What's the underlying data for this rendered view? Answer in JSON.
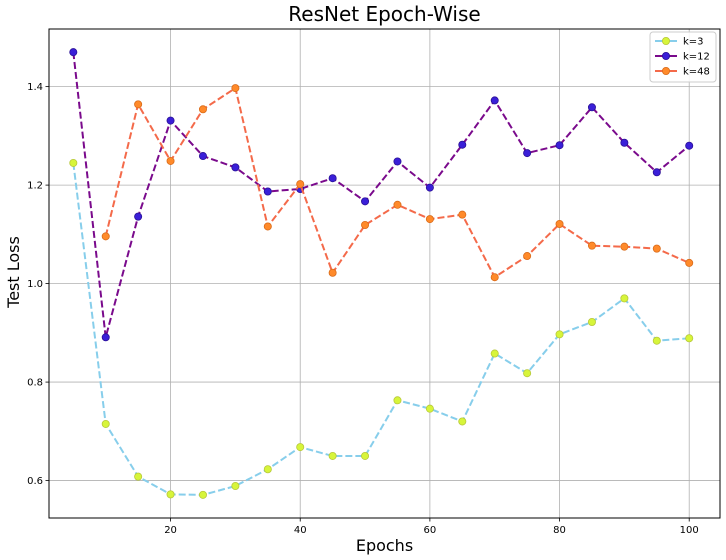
{
  "chart_data": {
    "type": "line",
    "title": "ResNet Epoch-Wise",
    "xlabel": "Epochs",
    "ylabel": "Test Loss",
    "xlim": [
      1.25,
      104.75
    ],
    "ylim": [
      0.524,
      1.517
    ],
    "xticks": [
      20,
      40,
      60,
      80,
      100
    ],
    "yticks": [
      0.6,
      0.8,
      1.0,
      1.2,
      1.4
    ],
    "xtick_labels": [
      "20",
      "40",
      "60",
      "80",
      "100"
    ],
    "ytick_labels": [
      "0.6",
      "0.8",
      "1.0",
      "1.2",
      "1.4"
    ],
    "grid": true,
    "legend_position": "top-right",
    "x": [
      5,
      10,
      15,
      20,
      25,
      30,
      35,
      40,
      45,
      50,
      55,
      60,
      65,
      70,
      75,
      80,
      85,
      90,
      95,
      100
    ],
    "series": [
      {
        "name": "k=3",
        "line_color": "#87ceeb",
        "marker_color": "#d7f53a",
        "marker_edge": "#b7c83a",
        "values": [
          1.245,
          0.715,
          0.608,
          0.572,
          0.571,
          0.589,
          0.623,
          0.668,
          0.65,
          0.65,
          0.763,
          0.746,
          0.72,
          0.858,
          0.818,
          0.897,
          0.922,
          0.97,
          0.884,
          0.889
        ]
      },
      {
        "name": "k=12",
        "line_color": "#7a0a8c",
        "marker_color": "#3a1fd8",
        "marker_edge": "#2a1096",
        "values": [
          1.47,
          0.891,
          1.136,
          1.331,
          1.259,
          1.236,
          1.187,
          1.192,
          1.214,
          1.167,
          1.248,
          1.195,
          1.282,
          1.372,
          1.265,
          1.281,
          1.358,
          1.286,
          1.226,
          1.28
        ]
      },
      {
        "name": "k=48",
        "line_color": "#f46a4a",
        "marker_color": "#ff8a2a",
        "marker_edge": "#d96b1a",
        "values": [
          null,
          1.096,
          1.364,
          1.249,
          1.354,
          1.397,
          1.116,
          1.202,
          1.022,
          1.119,
          1.16,
          1.131,
          1.14,
          1.013,
          1.056,
          1.121,
          1.077,
          1.075,
          1.071,
          1.042
        ]
      }
    ]
  }
}
